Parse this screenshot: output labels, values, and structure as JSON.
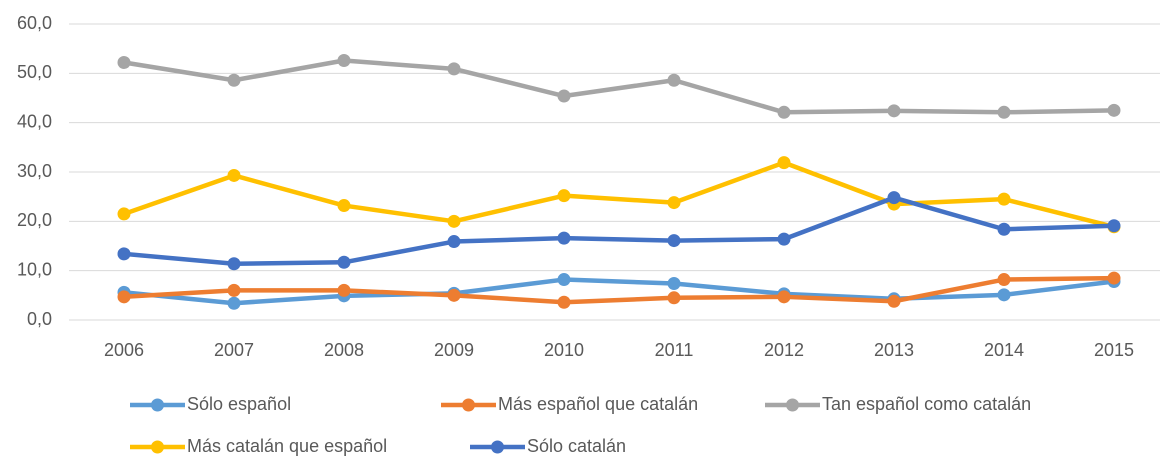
{
  "chart_data": {
    "type": "line",
    "categories": [
      "2006",
      "2007",
      "2008",
      "2009",
      "2010",
      "2011",
      "2012",
      "2013",
      "2014",
      "2015"
    ],
    "series": [
      {
        "name": "Sólo español",
        "color": "#5b9bd5",
        "values": [
          5.6,
          3.4,
          4.9,
          5.4,
          8.2,
          7.4,
          5.3,
          4.3,
          5.1,
          7.8
        ]
      },
      {
        "name": "Más español que catalán",
        "color": "#ed7d31",
        "values": [
          4.7,
          6.0,
          6.0,
          5.0,
          3.6,
          4.5,
          4.7,
          3.8,
          8.2,
          8.5
        ]
      },
      {
        "name": "Tan español como catalán",
        "color": "#a5a5a5",
        "values": [
          52.2,
          48.6,
          52.6,
          50.9,
          45.4,
          48.6,
          42.1,
          42.4,
          42.1,
          42.5
        ]
      },
      {
        "name": "Más catalán que español",
        "color": "#ffc000",
        "values": [
          21.5,
          29.3,
          23.2,
          20.0,
          25.2,
          23.8,
          31.9,
          23.5,
          24.5,
          18.9
        ]
      },
      {
        "name": "Sólo catalán",
        "color": "#4472c4",
        "values": [
          13.4,
          11.4,
          11.7,
          15.9,
          16.6,
          16.1,
          16.4,
          24.8,
          18.4,
          19.1
        ]
      }
    ],
    "ylim": [
      0,
      60
    ],
    "yticks": [
      {
        "value": 0,
        "label": "0,0"
      },
      {
        "value": 10,
        "label": "10,0"
      },
      {
        "value": 20,
        "label": "20,0"
      },
      {
        "value": 30,
        "label": "30,0"
      },
      {
        "value": 40,
        "label": "40,0"
      },
      {
        "value": 50,
        "label": "50,0"
      },
      {
        "value": 60,
        "label": "60,0"
      }
    ],
    "grid": true,
    "legend": "bottom"
  }
}
